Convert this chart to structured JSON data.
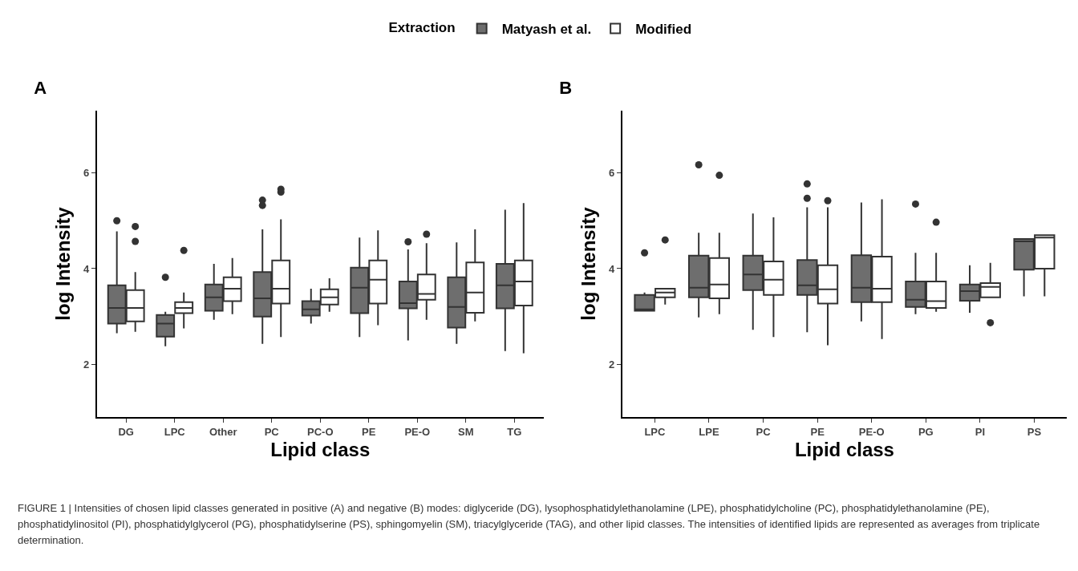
{
  "chart_data": [
    {
      "type": "box",
      "title": "A",
      "xlabel": "Lipid class",
      "ylabel": "log Intensity",
      "legend_title": "Extraction",
      "legend": "top",
      "grid": false,
      "categories": [
        "DG",
        "LPC",
        "Other",
        "PC",
        "PC-O",
        "PE",
        "PE-O",
        "SM",
        "TG"
      ],
      "ylim": [
        0.9,
        7.3
      ],
      "yticks": [
        2,
        4,
        6
      ],
      "series": [
        {
          "name": "Matyash et al.",
          "color": "#6e6e6e",
          "boxes": [
            {
              "low": 2.65,
              "q1": 2.85,
              "median": 3.18,
              "q3": 3.65,
              "high": 4.78,
              "outliers": [
                5.0
              ]
            },
            {
              "low": 2.38,
              "q1": 2.58,
              "median": 2.85,
              "q3": 3.03,
              "high": 3.1,
              "outliers": [
                3.82
              ]
            },
            {
              "low": 2.93,
              "q1": 3.12,
              "median": 3.4,
              "q3": 3.67,
              "high": 4.1
            },
            {
              "low": 2.43,
              "q1": 3.0,
              "median": 3.38,
              "q3": 3.93,
              "high": 4.82,
              "outliers": [
                5.32,
                5.43
              ]
            },
            {
              "low": 2.85,
              "q1": 3.02,
              "median": 3.15,
              "q3": 3.32,
              "high": 3.58
            },
            {
              "low": 2.57,
              "q1": 3.07,
              "median": 3.6,
              "q3": 4.02,
              "high": 4.65
            },
            {
              "low": 2.5,
              "q1": 3.17,
              "median": 3.28,
              "q3": 3.73,
              "high": 4.4,
              "outliers": [
                4.56
              ]
            },
            {
              "low": 2.43,
              "q1": 2.77,
              "median": 3.2,
              "q3": 3.82,
              "high": 4.55
            },
            {
              "low": 2.28,
              "q1": 3.17,
              "median": 3.65,
              "q3": 4.1,
              "high": 5.23
            }
          ]
        },
        {
          "name": "Modified",
          "color": "#ffffff",
          "boxes": [
            {
              "low": 2.68,
              "q1": 2.9,
              "median": 3.18,
              "q3": 3.55,
              "high": 3.93,
              "outliers": [
                4.57,
                4.88
              ]
            },
            {
              "low": 2.75,
              "q1": 3.07,
              "median": 3.18,
              "q3": 3.3,
              "high": 3.5,
              "outliers": [
                4.38
              ]
            },
            {
              "low": 3.05,
              "q1": 3.32,
              "median": 3.58,
              "q3": 3.82,
              "high": 4.22
            },
            {
              "low": 2.57,
              "q1": 3.27,
              "median": 3.58,
              "q3": 4.17,
              "high": 5.03,
              "outliers": [
                5.6,
                5.66
              ]
            },
            {
              "low": 3.1,
              "q1": 3.25,
              "median": 3.4,
              "q3": 3.57,
              "high": 3.8
            },
            {
              "low": 2.82,
              "q1": 3.27,
              "median": 3.77,
              "q3": 4.17,
              "high": 4.8
            },
            {
              "low": 2.93,
              "q1": 3.35,
              "median": 3.47,
              "q3": 3.88,
              "high": 4.53,
              "outliers": [
                4.72
              ]
            },
            {
              "low": 2.9,
              "q1": 3.08,
              "median": 3.5,
              "q3": 4.13,
              "high": 4.82
            },
            {
              "low": 2.23,
              "q1": 3.23,
              "median": 3.73,
              "q3": 4.17,
              "high": 5.37
            }
          ]
        }
      ]
    },
    {
      "type": "box",
      "title": "B",
      "xlabel": "Lipid class",
      "ylabel": "log Intensity",
      "grid": false,
      "categories": [
        "LPC",
        "LPE",
        "PC",
        "PE",
        "PE-O",
        "PG",
        "PI",
        "PS"
      ],
      "ylim": [
        0.9,
        7.3
      ],
      "yticks": [
        2,
        4,
        6
      ],
      "annotations": [
        "FIGURE 1 | Intensities of chosen lipid classes generated in positive (A) and negative (B) modes: diglyceride (DG), lysophosphatidylethanolamine (LPE), phosphatidylcholine (PC), phosphatidylethanolamine (PE), phosphatidylinositol (PI), phosphatidylglycerol (PG), phosphatidylserine (PS), sphingomyelin (SM), triacylglyceride (TAG), and other lipid classes. The intensities of identified lipids are represented as averages from triplicate determination."
      ],
      "series": [
        {
          "color": "#6e6e6e",
          "boxes": [
            {
              "low": 3.12,
              "q1": 3.12,
              "median": 3.15,
              "q3": 3.45,
              "high": 3.5,
              "outliers": [
                4.33
              ]
            },
            {
              "low": 2.98,
              "q1": 3.4,
              "median": 3.6,
              "q3": 4.27,
              "high": 4.75,
              "outliers": [
                6.17
              ]
            },
            {
              "low": 2.72,
              "q1": 3.55,
              "median": 3.88,
              "q3": 4.27,
              "high": 5.15
            },
            {
              "low": 2.67,
              "q1": 3.45,
              "median": 3.65,
              "q3": 4.18,
              "high": 5.28,
              "outliers": [
                5.47,
                5.77
              ]
            },
            {
              "low": 2.9,
              "q1": 3.3,
              "median": 3.6,
              "q3": 4.28,
              "high": 5.38
            },
            {
              "low": 3.05,
              "q1": 3.2,
              "median": 3.35,
              "q3": 3.73,
              "high": 4.33,
              "outliers": [
                5.35
              ]
            },
            {
              "low": 3.08,
              "q1": 3.33,
              "median": 3.53,
              "q3": 3.67,
              "high": 4.07
            },
            {
              "low": 3.42,
              "q1": 3.98,
              "median": 4.57,
              "q3": 4.62,
              "high": 4.62
            }
          ]
        },
        {
          "color": "#ffffff",
          "boxes": [
            {
              "low": 3.25,
              "q1": 3.4,
              "median": 3.5,
              "q3": 3.58,
              "high": 3.58,
              "outliers": [
                4.6
              ]
            },
            {
              "low": 3.05,
              "q1": 3.38,
              "median": 3.67,
              "q3": 4.22,
              "high": 4.75,
              "outliers": [
                5.95
              ]
            },
            {
              "low": 2.57,
              "q1": 3.45,
              "median": 3.77,
              "q3": 4.15,
              "high": 5.07
            },
            {
              "low": 2.4,
              "q1": 3.27,
              "median": 3.57,
              "q3": 4.07,
              "high": 5.28,
              "outliers": [
                5.42
              ]
            },
            {
              "low": 2.53,
              "q1": 3.3,
              "median": 3.58,
              "q3": 4.25,
              "high": 5.45
            },
            {
              "low": 3.1,
              "q1": 3.18,
              "median": 3.32,
              "q3": 3.73,
              "high": 4.33,
              "outliers": [
                4.97
              ]
            },
            {
              "low": 3.4,
              "q1": 3.4,
              "median": 3.62,
              "q3": 3.7,
              "high": 4.12,
              "outliers": [
                2.87
              ]
            },
            {
              "low": 3.42,
              "q1": 4.0,
              "median": 4.65,
              "q3": 4.7,
              "high": 4.7
            }
          ]
        }
      ]
    }
  ]
}
